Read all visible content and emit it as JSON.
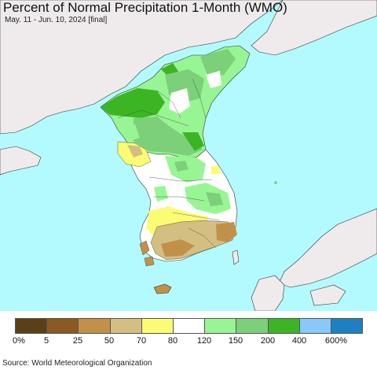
{
  "header": {
    "title": "Percent of Normal Precipitation 1-Month (WMO)",
    "subtitle": "May. 11 - Jun. 10, 2024 [final]"
  },
  "map": {
    "colors": {
      "sea": "#b3fafe",
      "land_outside": "#efebed",
      "white": "#ffffff",
      "light_green": "#98f593",
      "mid_green": "#7cd07a",
      "dark_green": "#3cb525",
      "yellow": "#fbfc74",
      "tan": "#d3bf82",
      "light_brown": "#c29149",
      "brown": "#8b5a22"
    }
  },
  "legend": {
    "colors": [
      "#5b4017",
      "#8b5a22",
      "#c29149",
      "#d3bf82",
      "#fbfc74",
      "#ffffff",
      "#98f593",
      "#7cd07a",
      "#3cb525",
      "#88c8fa",
      "#1e80c2"
    ],
    "labels": [
      "0%",
      "5",
      "25",
      "50",
      "70",
      "80",
      "120",
      "150",
      "200",
      "400",
      "600%"
    ]
  },
  "footer": {
    "source": "Source: World Meteorological Organization"
  }
}
